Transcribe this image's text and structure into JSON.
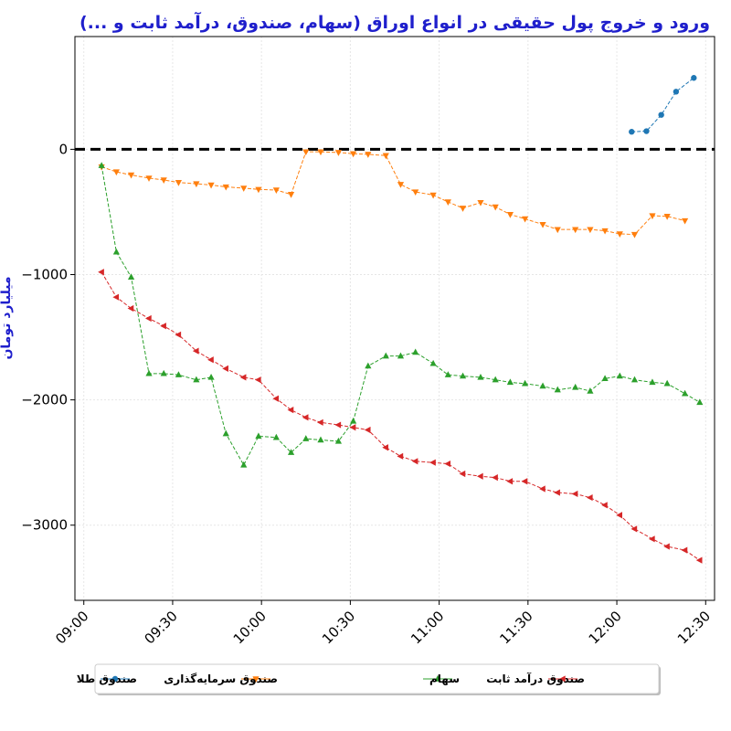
{
  "chart_data": {
    "type": "line",
    "title": "ورود و خروج پول حقیقی در انواع اوراق (سهام، صندوق، درآمد ثابت و ...)",
    "xlabel": "",
    "ylabel": "میلیارد تومان",
    "x_ticks": [
      "09:00",
      "09:30",
      "10:00",
      "10:30",
      "11:00",
      "11:30",
      "12:00",
      "12:30"
    ],
    "y_ticks": [
      "−3000",
      "−2000",
      "−1000",
      "0"
    ],
    "y_tick_values": [
      -3000,
      -2000,
      -1000,
      0
    ],
    "xlim": [
      "08:57",
      "12:33"
    ],
    "ylim": [
      -3600,
      900
    ],
    "reference_line": 0,
    "grid": true,
    "legend_position": "bottom-center",
    "series": [
      {
        "name": "صندوق طلا",
        "color": "#1f77b4",
        "marker": "circle",
        "points": [
          [
            "12:05",
            140
          ],
          [
            "12:10",
            145
          ],
          [
            "12:15",
            275
          ],
          [
            "12:20",
            460
          ],
          [
            "12:26",
            570
          ]
        ]
      },
      {
        "name": "صندوق سرمایه‌گذاری",
        "color": "#ff7f0e",
        "marker": "triangle-down",
        "points": [
          [
            "09:06",
            -140
          ],
          [
            "09:11",
            -180
          ],
          [
            "09:16",
            -205
          ],
          [
            "09:22",
            -230
          ],
          [
            "09:27",
            -245
          ],
          [
            "09:32",
            -265
          ],
          [
            "09:38",
            -275
          ],
          [
            "09:43",
            -285
          ],
          [
            "09:48",
            -300
          ],
          [
            "09:54",
            -310
          ],
          [
            "09:59",
            -320
          ],
          [
            "10:05",
            -325
          ],
          [
            "10:10",
            -360
          ],
          [
            "10:15",
            -20
          ],
          [
            "10:20",
            -20
          ],
          [
            "10:26",
            -25
          ],
          [
            "10:31",
            -35
          ],
          [
            "10:36",
            -40
          ],
          [
            "10:42",
            -50
          ],
          [
            "10:47",
            -280
          ],
          [
            "10:52",
            -340
          ],
          [
            "10:58",
            -365
          ],
          [
            "11:03",
            -420
          ],
          [
            "11:08",
            -470
          ],
          [
            "11:14",
            -425
          ],
          [
            "11:19",
            -460
          ],
          [
            "11:24",
            -520
          ],
          [
            "11:29",
            -555
          ],
          [
            "11:35",
            -600
          ],
          [
            "11:40",
            -640
          ],
          [
            "11:46",
            -640
          ],
          [
            "11:51",
            -640
          ],
          [
            "11:56",
            -650
          ],
          [
            "12:01",
            -675
          ],
          [
            "12:06",
            -680
          ],
          [
            "12:12",
            -530
          ],
          [
            "12:17",
            -535
          ],
          [
            "12:23",
            -570
          ]
        ]
      },
      {
        "name": "سهام",
        "color": "#2ca02c",
        "marker": "triangle-up",
        "points": [
          [
            "09:06",
            -130
          ],
          [
            "09:11",
            -820
          ],
          [
            "09:16",
            -1020
          ],
          [
            "09:22",
            -1790
          ],
          [
            "09:27",
            -1790
          ],
          [
            "09:32",
            -1800
          ],
          [
            "09:38",
            -1840
          ],
          [
            "09:43",
            -1820
          ],
          [
            "09:48",
            -2270
          ],
          [
            "09:54",
            -2520
          ],
          [
            "09:59",
            -2290
          ],
          [
            "10:05",
            -2300
          ],
          [
            "10:10",
            -2420
          ],
          [
            "10:15",
            -2310
          ],
          [
            "10:20",
            -2320
          ],
          [
            "10:26",
            -2330
          ],
          [
            "10:31",
            -2170
          ],
          [
            "10:36",
            -1730
          ],
          [
            "10:42",
            -1650
          ],
          [
            "10:47",
            -1650
          ],
          [
            "10:52",
            -1620
          ],
          [
            "10:58",
            -1710
          ],
          [
            "11:03",
            -1800
          ],
          [
            "11:08",
            -1810
          ],
          [
            "11:14",
            -1820
          ],
          [
            "11:19",
            -1840
          ],
          [
            "11:24",
            -1860
          ],
          [
            "11:29",
            -1870
          ],
          [
            "11:35",
            -1890
          ],
          [
            "11:40",
            -1920
          ],
          [
            "11:46",
            -1900
          ],
          [
            "11:51",
            -1930
          ],
          [
            "11:56",
            -1830
          ],
          [
            "12:01",
            -1810
          ],
          [
            "12:06",
            -1840
          ],
          [
            "12:12",
            -1860
          ],
          [
            "12:17",
            -1870
          ],
          [
            "12:23",
            -1950
          ],
          [
            "12:28",
            -2020
          ]
        ]
      },
      {
        "name": "صندوق درآمد ثابت",
        "color": "#d62728",
        "marker": "triangle-left",
        "points": [
          [
            "09:06",
            -980
          ],
          [
            "09:11",
            -1180
          ],
          [
            "09:16",
            -1270
          ],
          [
            "09:22",
            -1350
          ],
          [
            "09:27",
            -1410
          ],
          [
            "09:32",
            -1480
          ],
          [
            "09:38",
            -1610
          ],
          [
            "09:43",
            -1680
          ],
          [
            "09:48",
            -1750
          ],
          [
            "09:54",
            -1820
          ],
          [
            "09:59",
            -1840
          ],
          [
            "10:05",
            -1990
          ],
          [
            "10:10",
            -2080
          ],
          [
            "10:15",
            -2140
          ],
          [
            "10:20",
            -2180
          ],
          [
            "10:26",
            -2200
          ],
          [
            "10:31",
            -2220
          ],
          [
            "10:36",
            -2240
          ],
          [
            "10:42",
            -2380
          ],
          [
            "10:47",
            -2450
          ],
          [
            "10:52",
            -2490
          ],
          [
            "10:58",
            -2500
          ],
          [
            "11:03",
            -2510
          ],
          [
            "11:08",
            -2590
          ],
          [
            "11:14",
            -2610
          ],
          [
            "11:19",
            -2620
          ],
          [
            "11:24",
            -2650
          ],
          [
            "11:29",
            -2650
          ],
          [
            "11:35",
            -2710
          ],
          [
            "11:40",
            -2740
          ],
          [
            "11:46",
            -2750
          ],
          [
            "11:51",
            -2780
          ],
          [
            "11:56",
            -2840
          ],
          [
            "12:01",
            -2920
          ],
          [
            "12:06",
            -3030
          ],
          [
            "12:12",
            -3110
          ],
          [
            "12:17",
            -3170
          ],
          [
            "12:23",
            -3200
          ],
          [
            "12:28",
            -3280
          ]
        ]
      }
    ]
  }
}
